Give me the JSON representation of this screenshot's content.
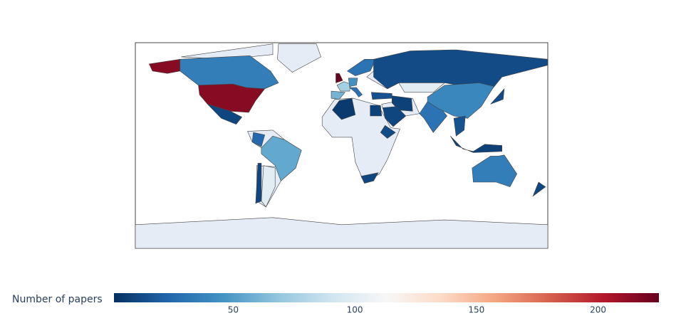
{
  "chart_data": {
    "type": "choropleth",
    "colorbar_title": "Number of papers",
    "cmin": 1,
    "cmax": 225,
    "ticks": [
      50,
      100,
      150,
      200
    ],
    "colorscale": [
      "#053061",
      "#2166ac",
      "#4393c3",
      "#92c5de",
      "#d1e5f0",
      "#f7f7f7",
      "#fddbc7",
      "#f4a582",
      "#d6604d",
      "#b2182b",
      "#67001f"
    ],
    "no_data_color": "#e5ecf6",
    "border_color": "#444444",
    "values": [
      215,
      215,
      35,
      10,
      55,
      100,
      10,
      25,
      5,
      8,
      12,
      10,
      225,
      75,
      60,
      45,
      30,
      30,
      15,
      12,
      100,
      8,
      10,
      30,
      40,
      15,
      8,
      12,
      35,
      10
    ]
  }
}
